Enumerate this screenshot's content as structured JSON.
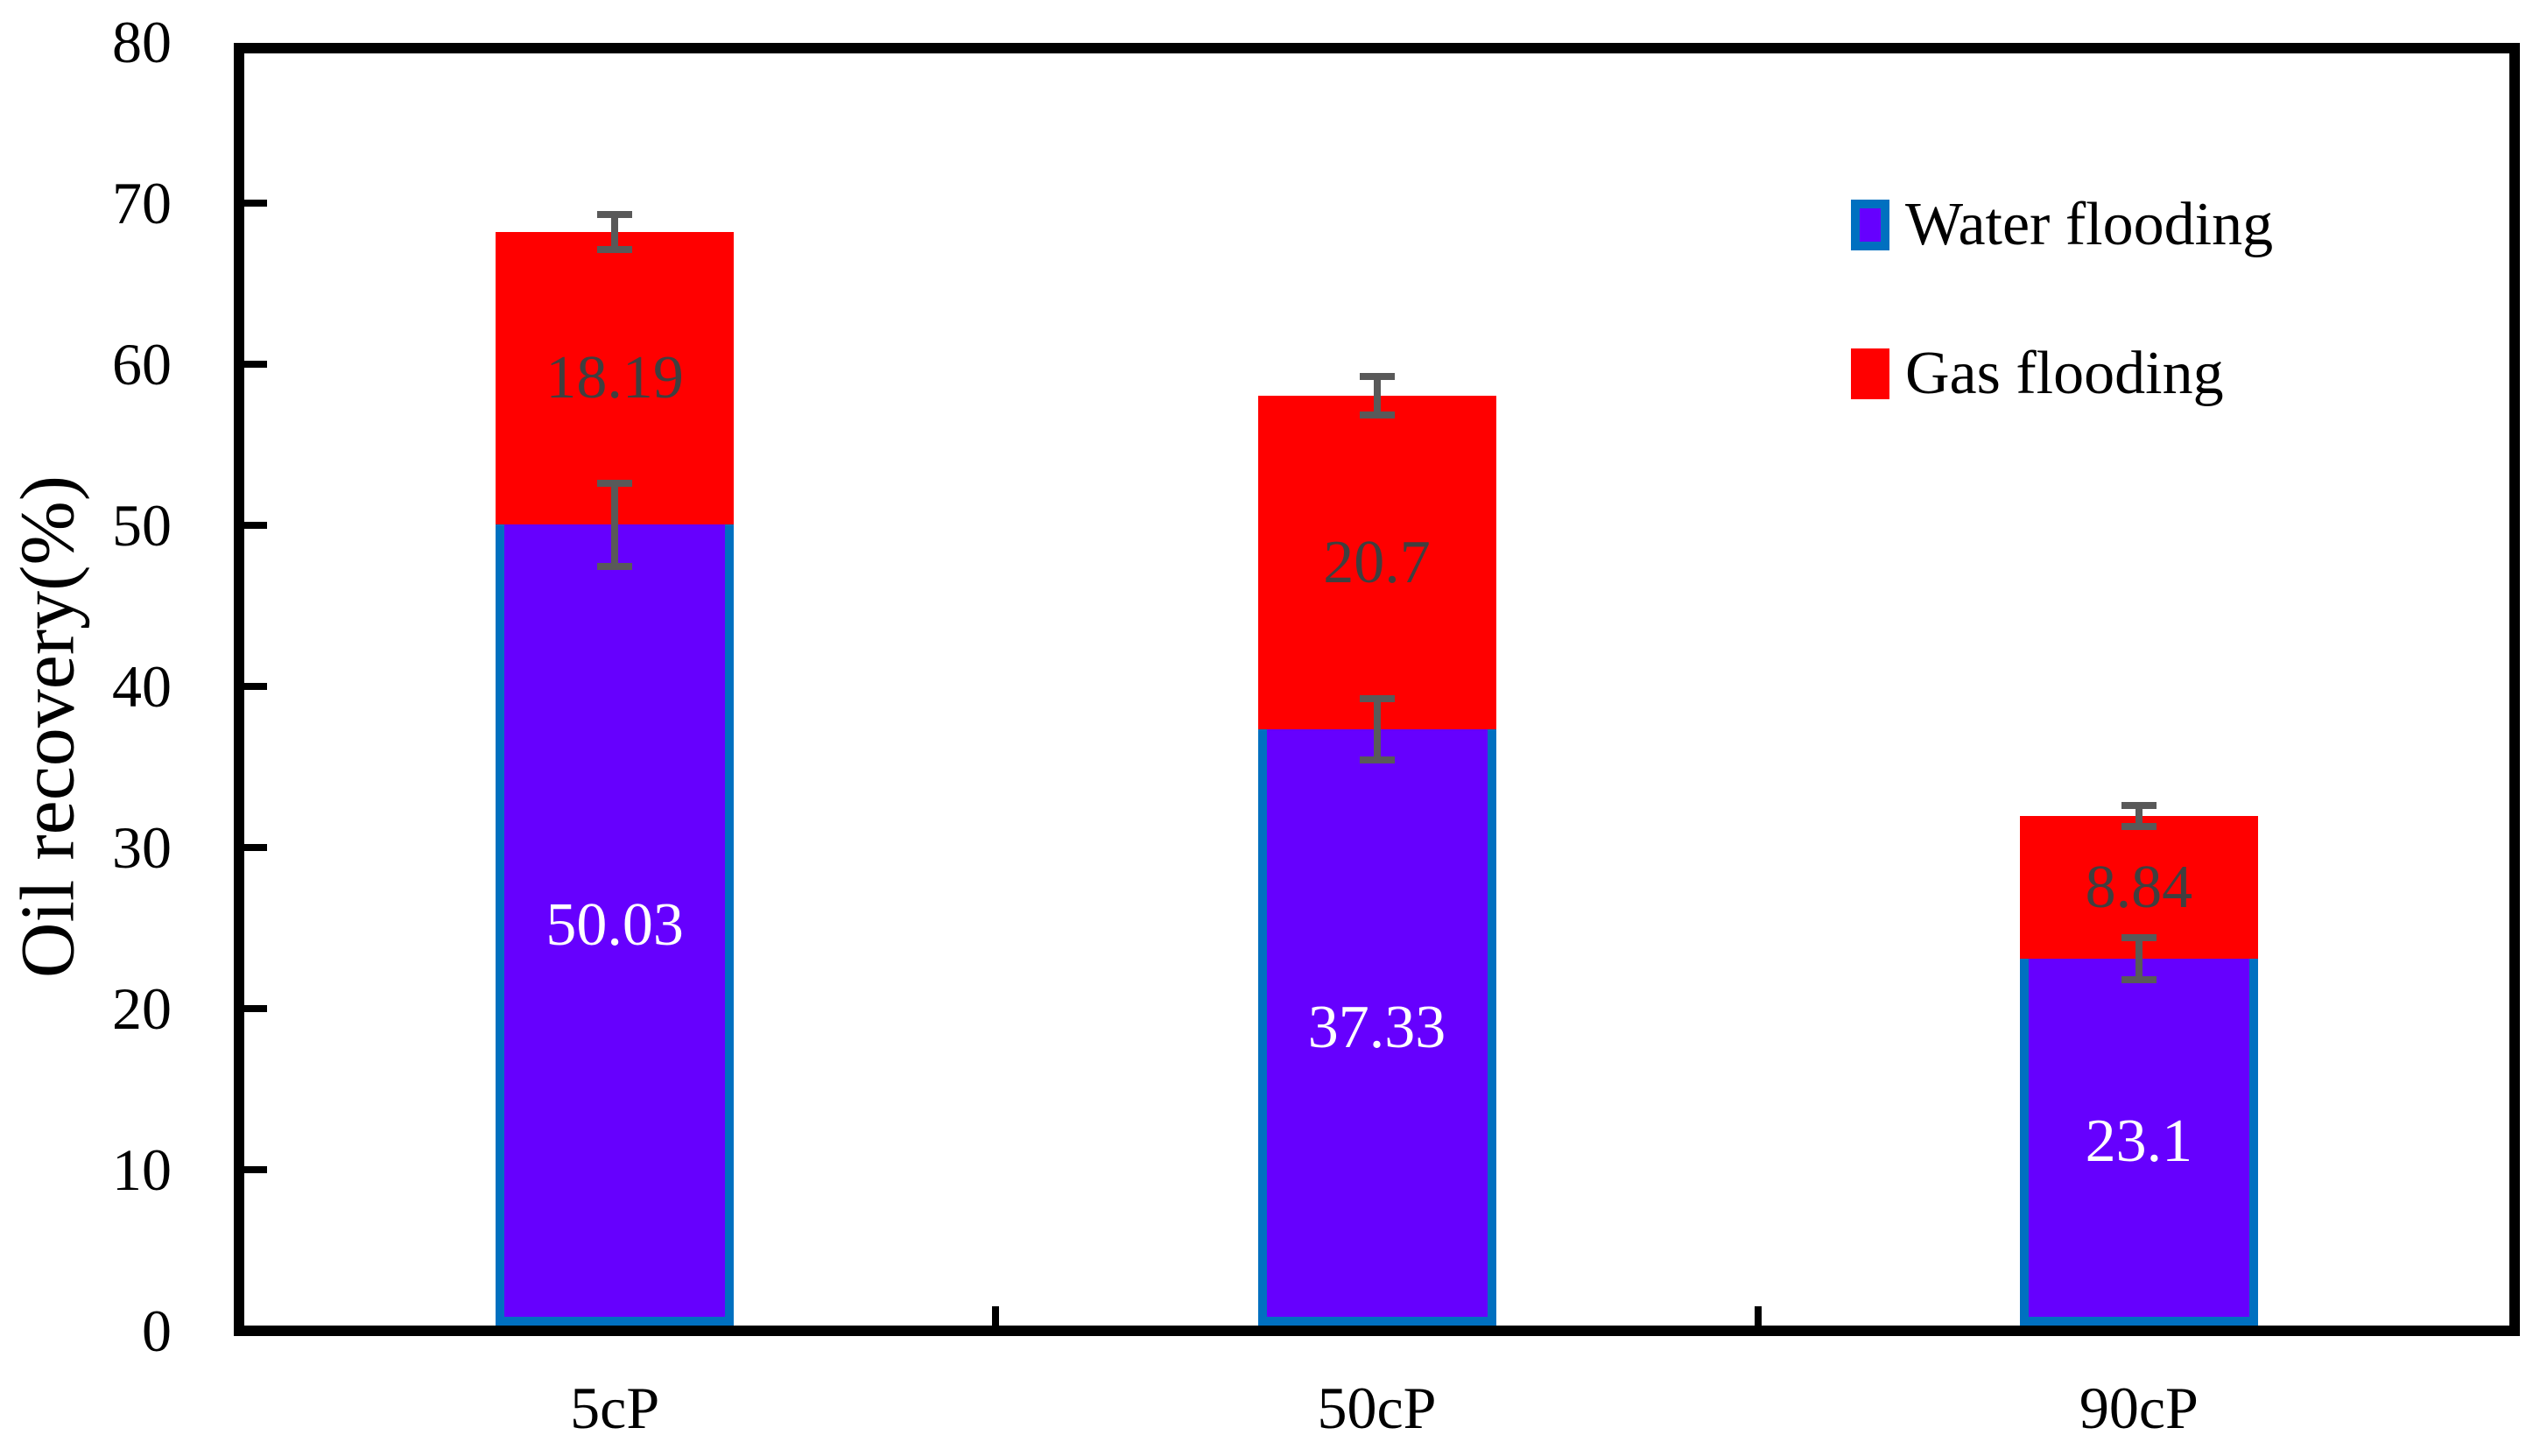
{
  "chart_data": {
    "type": "bar",
    "stacked": true,
    "title": "",
    "categories": [
      "5cP",
      "50cP",
      "90cP"
    ],
    "series": [
      {
        "name": "Water flooding",
        "values": [
          50.03,
          37.33,
          23.1
        ],
        "labels": [
          "50.03",
          "37.33",
          "23.1"
        ],
        "errors": [
          2.6,
          1.9,
          1.3
        ],
        "fill": "#6600FE",
        "border": "#0070C0",
        "label_color": "#FFFFFF"
      },
      {
        "name": "Gas flooding",
        "values": [
          18.19,
          20.7,
          8.84
        ],
        "labels": [
          "18.19",
          "20.7",
          "8.84"
        ],
        "errors": [
          1.1,
          1.2,
          0.65
        ],
        "fill": "#FF0000",
        "border": null,
        "label_color": "#3F3F3F"
      }
    ],
    "xlabel": "",
    "ylabel": "Oil recovery(%)",
    "ylim": [
      0,
      80
    ],
    "yticks": [
      0,
      10,
      20,
      30,
      40,
      50,
      60,
      70,
      80
    ],
    "grid": false,
    "legend_position": "top-right-inside",
    "error_bar_color": "#595959",
    "axis_color": "#000000"
  }
}
